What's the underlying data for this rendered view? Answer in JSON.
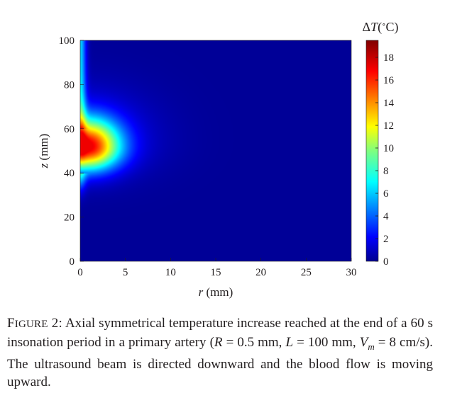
{
  "chart_data": {
    "type": "heatmap",
    "title": "",
    "xlabel": "r (mm)",
    "ylabel": "z (mm)",
    "xlim": [
      0,
      30
    ],
    "ylim": [
      0,
      100
    ],
    "x_ticks": [
      0,
      5,
      10,
      15,
      20,
      25,
      30
    ],
    "y_ticks": [
      0,
      20,
      40,
      60,
      80,
      100
    ],
    "colorbar": {
      "title": "ΔT(°C)",
      "range": [
        0,
        19.5
      ],
      "ticks": [
        0,
        2,
        4,
        6,
        8,
        10,
        12,
        14,
        16,
        18
      ],
      "colormap": "jet"
    },
    "hotspot": {
      "r_mm": 1.5,
      "z_mm": 52,
      "peak_deltaT_C": 19
    },
    "notes": "Temperature rise concentrated near r≈0–3 mm, z≈40–65 mm; warm plume extends upward along axis; background ≈0.5 °C"
  },
  "caption": {
    "label": "Figure 2:",
    "text": "Axial symmetrical temperature increase reached at the end of a 60 s insonation period in a primary artery (R = 0.5 mm, L = 100 mm, Vm = 8 cm/s). The ultrasound beam is directed downward and the blood flow is moving upward."
  }
}
